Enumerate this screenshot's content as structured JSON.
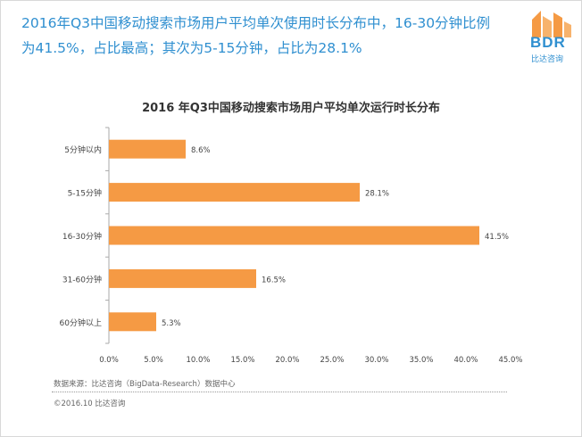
{
  "headline": "2016年Q3中国移动搜索市场用户平均单次使用时长分布中，16-30分钟比例为41.5%，占比最高；其次为5-15分钟，占比为28.1%",
  "logo": {
    "text": "BDR",
    "subtext": "比达咨询"
  },
  "footer": {
    "source": "数据来源：比达咨询（BigData-Research）数据中心",
    "copyright": "©2016.10 比达咨询"
  },
  "colors": {
    "bar": "#f59a44",
    "headline": "#2f8fd0",
    "axis": "#aaaaaa"
  },
  "chart_data": {
    "type": "bar",
    "orientation": "horizontal",
    "title": "2016 年Q3中国移动搜索市场用户平均单次运行时长分布",
    "categories": [
      "5分钟以内",
      "5-15分钟",
      "16-30分钟",
      "31-60分钟",
      "60分钟以上"
    ],
    "values": [
      8.6,
      28.1,
      41.5,
      16.5,
      5.3
    ],
    "value_labels": [
      "8.6%",
      "28.1%",
      "41.5%",
      "16.5%",
      "5.3%"
    ],
    "xlim": [
      0,
      45
    ],
    "x_ticks": [
      "0.0%",
      "5.0%",
      "10.0%",
      "15.0%",
      "20.0%",
      "25.0%",
      "30.0%",
      "35.0%",
      "40.0%",
      "45.0%"
    ],
    "grid": false,
    "legend": "none"
  }
}
